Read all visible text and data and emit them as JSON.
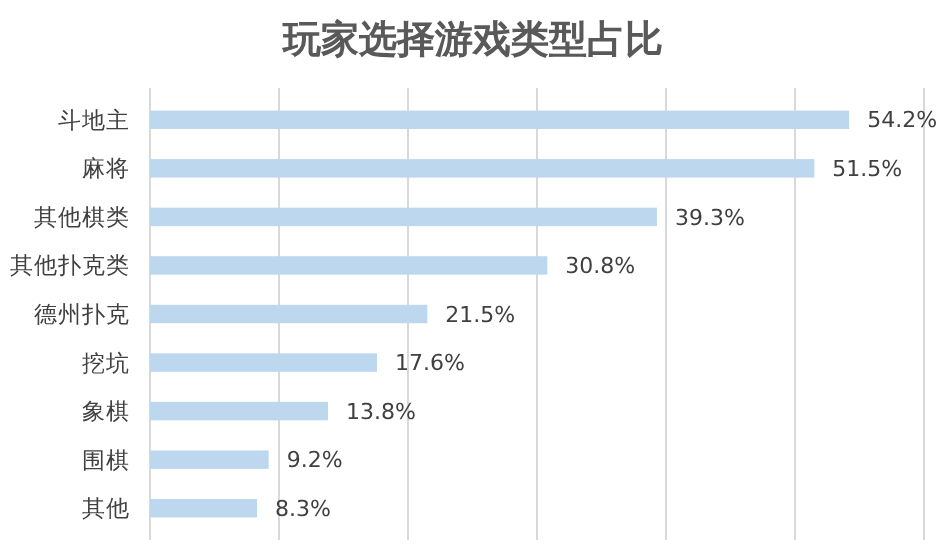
{
  "chart_data": {
    "type": "bar",
    "orientation": "horizontal",
    "title": "玩家选择游戏类型占比",
    "categories": [
      "斗地主",
      "麻将",
      "其他棋类",
      "其他扑克类",
      "德州扑克",
      "挖坑",
      "象棋",
      "围棋",
      "其他"
    ],
    "values": [
      54.2,
      51.5,
      39.3,
      30.8,
      21.5,
      17.6,
      13.8,
      9.2,
      8.3
    ],
    "value_labels": [
      "54.2%",
      "51.5%",
      "39.3%",
      "30.8%",
      "21.5%",
      "17.6%",
      "13.8%",
      "9.2%",
      "8.3%"
    ],
    "color": "#bdd7ee",
    "xlim": [
      0,
      60
    ],
    "xticks": [
      {
        "value": 0,
        "label": null
      },
      {
        "value": 10,
        "label": null
      },
      {
        "value": 20,
        "label": null
      },
      {
        "value": 30,
        "label": null
      },
      {
        "value": 40,
        "label": null
      },
      {
        "value": 50,
        "label": null
      },
      {
        "value": 60,
        "label": null
      }
    ],
    "grid": "x",
    "tick_labels": "y"
  }
}
